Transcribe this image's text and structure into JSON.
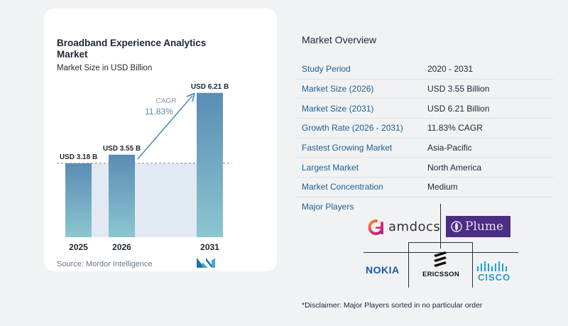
{
  "chart_data": {
    "type": "bar",
    "title": "Broadband Experience Analytics Market",
    "subtitle": "Market Size in USD Billion",
    "categories": [
      "2025",
      "2026",
      "2031"
    ],
    "values": [
      3.18,
      3.55,
      6.21
    ],
    "value_labels": [
      "USD 3.18 B",
      "USD 3.55 B",
      "USD 6.21 B"
    ],
    "ylim": [
      0,
      6.6
    ],
    "cagr_label": "CAGR",
    "cagr_value": "11.83%",
    "bar_color_top": "#5a8db4",
    "bar_color_bottom": "#8cc6d0",
    "grid": false,
    "source": "Source: Mordor Intelligence"
  },
  "overview": {
    "title": "Market Overview",
    "rows": [
      {
        "key": "Study Period",
        "value": "2020 - 2031"
      },
      {
        "key": "Market Size (2026)",
        "value": "USD 3.55 Billion"
      },
      {
        "key": "Market Size (2031)",
        "value": "USD 6.21 Billion"
      },
      {
        "key": "Growth Rate (2026 - 2031)",
        "value": "11.83% CAGR"
      },
      {
        "key": "Fastest Growing Market",
        "value": "Asia-Pacific"
      },
      {
        "key": "Largest Market",
        "value": "North America"
      },
      {
        "key": "Market Concentration",
        "value": "Medium"
      }
    ]
  },
  "players": {
    "title": "Major Players",
    "logos": {
      "amdocs": "amdocs",
      "plume": "Plume",
      "nokia": "NOKIA",
      "ericsson": "ERICSSON",
      "cisco": "CISCO"
    }
  },
  "disclaimer": "*Disclaimer: Major Players sorted in no particular order"
}
